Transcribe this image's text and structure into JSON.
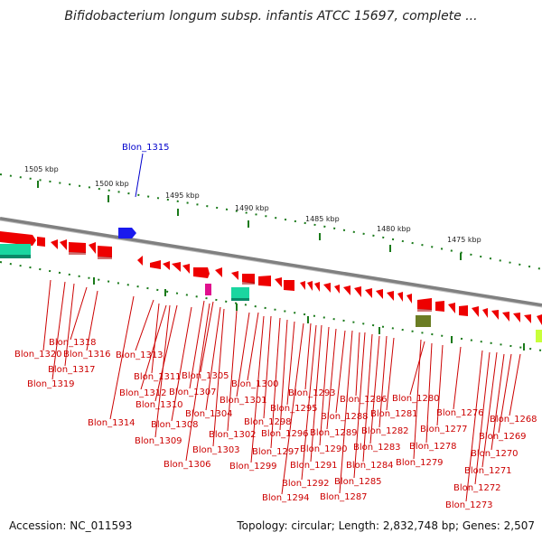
{
  "title": "Bifidobacterium longum subsp. infantis ATCC 15697, complete ...",
  "accession": "Accession: NC_011593",
  "summary": "Topology: circular; Length: 2,832,748 bp; Genes: 2,507",
  "colors": {
    "forward_gene": "#ff0000",
    "highlight": "#0000cc",
    "label": "#cc0000",
    "backbone": "#808080",
    "tick": "#1a7a1a"
  },
  "ticks": [
    "1505 kbp",
    "1500 kbp",
    "1495 kbp",
    "1490 kbp",
    "1485 kbp",
    "1480 kbp",
    "1475 kbp"
  ],
  "highlight_gene": "Blon_1315",
  "gene_labels": [
    "Blon_1318",
    "Blon_1320",
    "Blon_1316",
    "Blon_1317",
    "Blon_1319",
    "Blon_1313",
    "Blon_1311",
    "Blon_1305",
    "Blon_1312",
    "Blon_1307",
    "Blon_1310",
    "Blon_1314",
    "Blon_1308",
    "Blon_1309",
    "Blon_1306",
    "Blon_1304",
    "Blon_1303",
    "Blon_1302",
    "Blon_1300",
    "Blon_1301",
    "Blon_1298",
    "Blon_1299",
    "Blon_1297",
    "Blon_1296",
    "Blon_1295",
    "Blon_1294",
    "Blon_1293",
    "Blon_1292",
    "Blon_1291",
    "Blon_1290",
    "Blon_1289",
    "Blon_1288",
    "Blon_1287",
    "Blon_1286",
    "Blon_1285",
    "Blon_1284",
    "Blon_1283",
    "Blon_1282",
    "Blon_1281",
    "Blon_1280",
    "Blon_1279",
    "Blon_1278",
    "Blon_1277",
    "Blon_1276",
    "Blon_1273",
    "Blon_1272",
    "Blon_1271",
    "Blon_1270",
    "Blon_1269",
    "Blon_1268"
  ]
}
